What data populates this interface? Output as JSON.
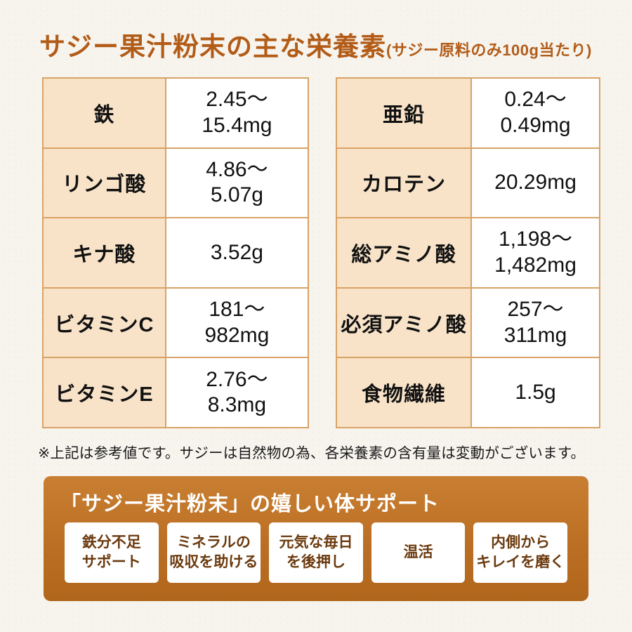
{
  "title": {
    "main": "サジー果汁粉末の主な栄養素",
    "sub": "(サジー原料のみ100g当たり)"
  },
  "tables": [
    {
      "rows": [
        {
          "label": "鉄",
          "value": "2.45〜\n15.4mg"
        },
        {
          "label": "リンゴ酸",
          "value": "4.86〜\n5.07g"
        },
        {
          "label": "キナ酸",
          "value": "3.52g"
        },
        {
          "label": "ビタミンC",
          "value": "181〜\n982mg"
        },
        {
          "label": "ビタミンE",
          "value": "2.76〜\n8.3mg"
        }
      ]
    },
    {
      "rows": [
        {
          "label": "亜鉛",
          "value": "0.24〜\n0.49mg"
        },
        {
          "label": "カロテン",
          "value": "20.29mg"
        },
        {
          "label": "総アミノ酸",
          "value": "1,198〜\n1,482mg"
        },
        {
          "label": "必須アミノ酸",
          "value": "257〜\n311mg"
        },
        {
          "label": "食物繊維",
          "value": "1.5g"
        }
      ]
    }
  ],
  "note": "※上記は参考値です。サジーは自然物の為、各栄養素の含有量は変動がございます。",
  "support": {
    "heading": "「サジー果汁粉末」の嬉しい体サポート",
    "items": [
      "鉄分不足\nサポート",
      "ミネラルの\n吸収を助ける",
      "元気な毎日\nを後押し",
      "温活",
      "内側から\nキレイを磨く"
    ]
  },
  "colors": {
    "accent_title": "#b25c18",
    "table_border": "#d9a265",
    "label_cell_bg": "#f8e3c8",
    "panel_bg": "#bb6f24",
    "support_text": "#6b3a0e"
  }
}
